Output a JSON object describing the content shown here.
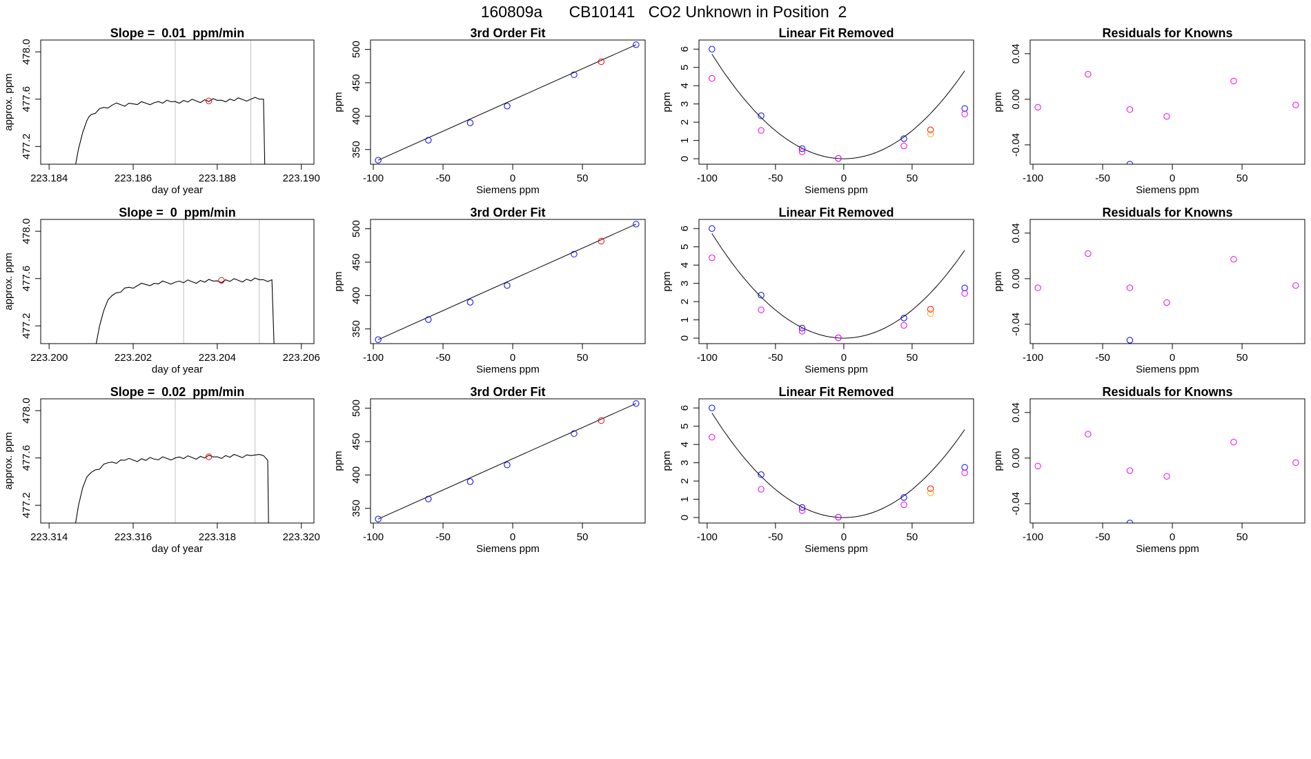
{
  "page_title": "160809a      CB10141   CO2 Unknown in Position  2",
  "chart_data": [
    {
      "type": "line",
      "row": 0,
      "col": 0,
      "title": "Slope =  0.01  ppm/min",
      "xlabel": "day of year",
      "ylabel": "approx. ppm",
      "xlim": [
        223.1838,
        223.1903
      ],
      "ylim": [
        477.05,
        478.1
      ],
      "xticks": [
        223.184,
        223.186,
        223.188,
        223.19
      ],
      "xtick_labels": [
        "223.184",
        "223.186",
        "223.188",
        "223.190"
      ],
      "yticks": [
        477.2,
        477.6,
        478.0
      ],
      "ytick_labels": [
        "477.2",
        "477.6",
        "478.0"
      ],
      "vlines": [
        223.187,
        223.1888
      ],
      "plateau": 477.58,
      "trace": [
        [
          223.18463,
          477.05
        ],
        [
          223.1847,
          477.18
        ],
        [
          223.1848,
          477.32
        ],
        [
          223.1849,
          477.42
        ],
        [
          223.185,
          477.47
        ],
        [
          223.1852,
          477.52
        ],
        [
          223.1855,
          477.55
        ],
        [
          223.186,
          477.56
        ],
        [
          223.1865,
          477.57
        ],
        [
          223.187,
          477.58
        ],
        [
          223.188,
          477.59
        ],
        [
          223.1888,
          477.6
        ],
        [
          223.1891,
          477.6
        ],
        [
          223.18913,
          477.05
        ]
      ],
      "marker": {
        "x": 223.1878,
        "y": 477.585
      }
    },
    {
      "type": "scatter",
      "row": 0,
      "col": 1,
      "title": "3rd Order Fit",
      "xlabel": "Siemens ppm",
      "ylabel": "ppm",
      "xlim": [
        -102,
        95
      ],
      "ylim": [
        328,
        514
      ],
      "xticks": [
        -100,
        -50,
        0,
        50
      ],
      "xtick_labels": [
        "-100",
        "-50",
        "0",
        "50"
      ],
      "yticks": [
        350,
        400,
        450,
        500
      ],
      "ytick_labels": [
        "350",
        "400",
        "450",
        "500"
      ],
      "points": [
        [
          -96.5,
          334
        ],
        [
          -60.5,
          364
        ],
        [
          -30.5,
          390
        ],
        [
          -4,
          415
        ],
        [
          44,
          462
        ],
        [
          88.5,
          507
        ]
      ],
      "highlight": [
        [
          63.5,
          481.5
        ]
      ],
      "fit_line": [
        [
          -96.5,
          334
        ],
        [
          88.5,
          507
        ]
      ]
    },
    {
      "type": "scatter",
      "row": 0,
      "col": 2,
      "title": "Linear Fit Removed",
      "xlabel": "Siemens ppm",
      "ylabel": "ppm",
      "xlim": [
        -106,
        95
      ],
      "ylim": [
        -0.3,
        6.5
      ],
      "xticks": [
        -100,
        -50,
        0,
        50
      ],
      "xtick_labels": [
        "-100",
        "-50",
        "0",
        "50"
      ],
      "yticks": [
        0,
        1,
        2,
        3,
        4,
        5,
        6
      ],
      "ytick_labels": [
        "0",
        "1",
        "2",
        "3",
        "4",
        "5",
        "6"
      ],
      "blue_points": [
        [
          -96.5,
          6.0
        ],
        [
          -60.5,
          2.35
        ],
        [
          -30.5,
          0.55
        ],
        [
          -4,
          0.02
        ],
        [
          44,
          1.1
        ],
        [
          88.5,
          2.75
        ]
      ],
      "violet_points": [
        [
          -96.5,
          4.4
        ],
        [
          -60.5,
          1.55
        ],
        [
          -30.5,
          0.38
        ],
        [
          -4,
          0.02
        ],
        [
          44,
          0.7
        ],
        [
          88.5,
          2.45
        ]
      ],
      "red_points": [
        [
          63.5,
          1.58
        ]
      ],
      "orange_points": [
        [
          63.5,
          1.35
        ]
      ],
      "fit_curve": {
        "vertex_x": 0,
        "coef": 0.000615,
        "x_from": -96.5,
        "x_to": 88.5
      }
    },
    {
      "type": "scatter",
      "row": 0,
      "col": 3,
      "title": "Residuals for Knowns",
      "xlabel": "Siemens ppm",
      "ylabel": "ppm",
      "xlim": [
        -102,
        95
      ],
      "ylim": [
        -0.057,
        0.052
      ],
      "xticks": [
        -100,
        -50,
        0,
        50
      ],
      "xtick_labels": [
        "-100",
        "-50",
        "0",
        "50"
      ],
      "yticks": [
        -0.04,
        0.0,
        0.04
      ],
      "ytick_labels": [
        "-0.04",
        "0.00",
        "0.04"
      ],
      "violet_points": [
        [
          -96.5,
          -0.007
        ],
        [
          -60.5,
          0.022
        ],
        [
          -30.5,
          -0.009
        ],
        [
          -4,
          -0.015
        ],
        [
          44,
          0.016
        ],
        [
          88.5,
          -0.005
        ]
      ],
      "blue_points": [
        [
          -30.5,
          -0.057
        ]
      ]
    },
    {
      "type": "line",
      "row": 1,
      "col": 0,
      "title": "Slope =  0  ppm/min",
      "xlabel": "day of year",
      "ylabel": "approx. ppm",
      "xlim": [
        223.1998,
        223.2063
      ],
      "ylim": [
        477.05,
        478.1
      ],
      "xticks": [
        223.2,
        223.202,
        223.204,
        223.206
      ],
      "xtick_labels": [
        "223.200",
        "223.202",
        "223.204",
        "223.206"
      ],
      "yticks": [
        477.2,
        477.6,
        478.0
      ],
      "ytick_labels": [
        "477.2",
        "477.6",
        "478.0"
      ],
      "vlines": [
        223.2032,
        223.205
      ],
      "plateau": 477.58,
      "trace": [
        [
          223.20112,
          477.05
        ],
        [
          223.2012,
          477.2
        ],
        [
          223.2013,
          477.33
        ],
        [
          223.2014,
          477.42
        ],
        [
          223.2016,
          477.48
        ],
        [
          223.2018,
          477.52
        ],
        [
          223.2021,
          477.54
        ],
        [
          223.2025,
          477.56
        ],
        [
          223.203,
          477.57
        ],
        [
          223.204,
          477.58
        ],
        [
          223.205,
          477.59
        ],
        [
          223.2053,
          477.59
        ],
        [
          223.20535,
          477.05
        ]
      ],
      "marker": {
        "x": 223.2041,
        "y": 477.585
      }
    },
    {
      "type": "scatter",
      "row": 1,
      "col": 1,
      "title": "3rd Order Fit",
      "xlabel": "Siemens ppm",
      "ylabel": "ppm",
      "xlim": [
        -102,
        95
      ],
      "ylim": [
        328,
        514
      ],
      "xticks": [
        -100,
        -50,
        0,
        50
      ],
      "xtick_labels": [
        "-100",
        "-50",
        "0",
        "50"
      ],
      "yticks": [
        350,
        400,
        450,
        500
      ],
      "ytick_labels": [
        "350",
        "400",
        "450",
        "500"
      ],
      "points": [
        [
          -96.5,
          334
        ],
        [
          -60.5,
          364
        ],
        [
          -30.5,
          390
        ],
        [
          -4,
          415
        ],
        [
          44,
          462
        ],
        [
          88.5,
          507
        ]
      ],
      "highlight": [
        [
          63.5,
          481.5
        ]
      ],
      "fit_line": [
        [
          -96.5,
          334
        ],
        [
          88.5,
          507
        ]
      ]
    },
    {
      "type": "scatter",
      "row": 1,
      "col": 2,
      "title": "Linear Fit Removed",
      "xlabel": "Siemens ppm",
      "ylabel": "ppm",
      "xlim": [
        -106,
        95
      ],
      "ylim": [
        -0.3,
        6.5
      ],
      "xticks": [
        -100,
        -50,
        0,
        50
      ],
      "xtick_labels": [
        "-100",
        "-50",
        "0",
        "50"
      ],
      "yticks": [
        0,
        1,
        2,
        3,
        4,
        5,
        6
      ],
      "ytick_labels": [
        "0",
        "1",
        "2",
        "3",
        "4",
        "5",
        "6"
      ],
      "blue_points": [
        [
          -96.5,
          6.0
        ],
        [
          -60.5,
          2.35
        ],
        [
          -30.5,
          0.55
        ],
        [
          -4,
          0.02
        ],
        [
          44,
          1.1
        ],
        [
          88.5,
          2.75
        ]
      ],
      "violet_points": [
        [
          -96.5,
          4.4
        ],
        [
          -60.5,
          1.55
        ],
        [
          -30.5,
          0.38
        ],
        [
          -4,
          0.02
        ],
        [
          44,
          0.7
        ],
        [
          88.5,
          2.45
        ]
      ],
      "red_points": [
        [
          63.5,
          1.58
        ]
      ],
      "orange_points": [
        [
          63.5,
          1.35
        ]
      ],
      "fit_curve": {
        "vertex_x": 0,
        "coef": 0.000615,
        "x_from": -96.5,
        "x_to": 88.5
      }
    },
    {
      "type": "scatter",
      "row": 1,
      "col": 3,
      "title": "Residuals for Knowns",
      "xlabel": "Siemens ppm",
      "ylabel": "ppm",
      "xlim": [
        -102,
        95
      ],
      "ylim": [
        -0.057,
        0.052
      ],
      "xticks": [
        -100,
        -50,
        0,
        50
      ],
      "xtick_labels": [
        "-100",
        "-50",
        "0",
        "50"
      ],
      "yticks": [
        -0.04,
        0.0,
        0.04
      ],
      "ytick_labels": [
        "-0.04",
        "0.00",
        "0.04"
      ],
      "violet_points": [
        [
          -96.5,
          -0.008
        ],
        [
          -60.5,
          0.022
        ],
        [
          -30.5,
          -0.008
        ],
        [
          -4,
          -0.021
        ],
        [
          44,
          0.017
        ],
        [
          88.5,
          -0.006
        ]
      ],
      "blue_points": [
        [
          -30.5,
          -0.054
        ]
      ]
    },
    {
      "type": "line",
      "row": 2,
      "col": 0,
      "title": "Slope =  0.02  ppm/min",
      "xlabel": "day of year",
      "ylabel": "approx. ppm",
      "xlim": [
        223.3138,
        223.3203
      ],
      "ylim": [
        477.05,
        478.1
      ],
      "xticks": [
        223.314,
        223.316,
        223.318,
        223.32
      ],
      "xtick_labels": [
        "223.314",
        "223.316",
        "223.318",
        "223.320"
      ],
      "yticks": [
        477.2,
        477.6,
        478.0
      ],
      "ytick_labels": [
        "477.2",
        "477.6",
        "478.0"
      ],
      "vlines": [
        223.317,
        223.3189
      ],
      "plateau": 477.6,
      "trace": [
        [
          223.31463,
          477.05
        ],
        [
          223.3147,
          477.2
        ],
        [
          223.3148,
          477.35
        ],
        [
          223.3149,
          477.44
        ],
        [
          223.3151,
          477.5
        ],
        [
          223.3154,
          477.56
        ],
        [
          223.3158,
          477.58
        ],
        [
          223.3165,
          477.59
        ],
        [
          223.317,
          477.6
        ],
        [
          223.318,
          477.61
        ],
        [
          223.3188,
          477.62
        ],
        [
          223.319,
          477.63
        ],
        [
          223.3192,
          477.58
        ],
        [
          223.31922,
          477.05
        ]
      ],
      "marker": {
        "x": 223.3178,
        "y": 477.61
      }
    },
    {
      "type": "scatter",
      "row": 2,
      "col": 1,
      "title": "3rd Order Fit",
      "xlabel": "Siemens ppm",
      "ylabel": "ppm",
      "xlim": [
        -102,
        95
      ],
      "ylim": [
        328,
        514
      ],
      "xticks": [
        -100,
        -50,
        0,
        50
      ],
      "xtick_labels": [
        "-100",
        "-50",
        "0",
        "50"
      ],
      "yticks": [
        350,
        400,
        450,
        500
      ],
      "ytick_labels": [
        "350",
        "400",
        "450",
        "500"
      ],
      "points": [
        [
          -96.5,
          334
        ],
        [
          -60.5,
          364
        ],
        [
          -30.5,
          390
        ],
        [
          -4,
          415
        ],
        [
          44,
          462
        ],
        [
          88.5,
          507
        ]
      ],
      "highlight": [
        [
          63.5,
          481.5
        ]
      ],
      "fit_line": [
        [
          -96.5,
          334
        ],
        [
          88.5,
          507
        ]
      ]
    },
    {
      "type": "scatter",
      "row": 2,
      "col": 2,
      "title": "Linear Fit Removed",
      "xlabel": "Siemens ppm",
      "ylabel": "ppm",
      "xlim": [
        -106,
        95
      ],
      "ylim": [
        -0.3,
        6.5
      ],
      "xticks": [
        -100,
        -50,
        0,
        50
      ],
      "xtick_labels": [
        "-100",
        "-50",
        "0",
        "50"
      ],
      "yticks": [
        0,
        1,
        2,
        3,
        4,
        5,
        6
      ],
      "ytick_labels": [
        "0",
        "1",
        "2",
        "3",
        "4",
        "5",
        "6"
      ],
      "blue_points": [
        [
          -96.5,
          6.0
        ],
        [
          -60.5,
          2.35
        ],
        [
          -30.5,
          0.55
        ],
        [
          -4,
          0.02
        ],
        [
          44,
          1.1
        ],
        [
          88.5,
          2.75
        ]
      ],
      "violet_points": [
        [
          -96.5,
          4.4
        ],
        [
          -60.5,
          1.55
        ],
        [
          -30.5,
          0.38
        ],
        [
          -4,
          0.02
        ],
        [
          44,
          0.7
        ],
        [
          88.5,
          2.45
        ]
      ],
      "red_points": [
        [
          63.5,
          1.58
        ]
      ],
      "orange_points": [
        [
          63.5,
          1.35
        ]
      ],
      "fit_curve": {
        "vertex_x": 0,
        "coef": 0.000615,
        "x_from": -96.5,
        "x_to": 88.5
      }
    },
    {
      "type": "scatter",
      "row": 2,
      "col": 3,
      "title": "Residuals for Knowns",
      "xlabel": "Siemens ppm",
      "ylabel": "ppm",
      "xlim": [
        -102,
        95
      ],
      "ylim": [
        -0.057,
        0.052
      ],
      "xticks": [
        -100,
        -50,
        0,
        50
      ],
      "xtick_labels": [
        "-100",
        "-50",
        "0",
        "50"
      ],
      "yticks": [
        -0.04,
        0.0,
        0.04
      ],
      "ytick_labels": [
        "-0.04",
        "0.00",
        "0.04"
      ],
      "violet_points": [
        [
          -96.5,
          -0.007
        ],
        [
          -60.5,
          0.021
        ],
        [
          -30.5,
          -0.011
        ],
        [
          -4,
          -0.016
        ],
        [
          44,
          0.014
        ],
        [
          88.5,
          -0.004
        ]
      ],
      "blue_points": [
        [
          -30.5,
          -0.057
        ]
      ]
    }
  ],
  "colors": {
    "axis": "#000000",
    "trace": "#000000",
    "vline": "#bebebe",
    "blue": "#0000ff",
    "red": "#ff0000",
    "violet": "#ee00ee",
    "orange": "#ffa500"
  }
}
